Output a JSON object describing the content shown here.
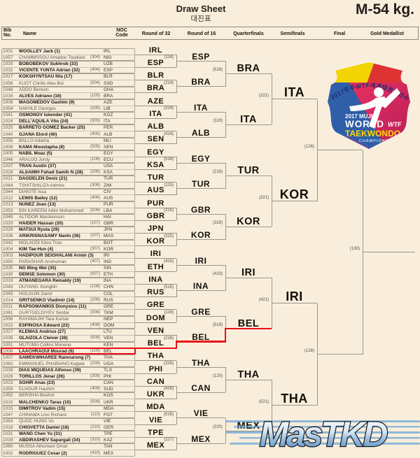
{
  "page": {
    "title": "Draw Sheet",
    "subtitle_korean": "대진표",
    "category": "M-54 kg."
  },
  "table_header": {
    "bib_line1": "Bib",
    "bib_line2": "No.",
    "name": "Name",
    "noc_line1": "NOC",
    "noc_line2": "Code",
    "rounds": [
      "Round of 32",
      "Round of 16",
      "Quarterfinals",
      "Semifinals",
      "Final",
      "Gold Medallist"
    ]
  },
  "athletes": [
    {
      "bib": "1001",
      "name": "WOOLLEY Jack (1)",
      "noc": "IRL",
      "match": "",
      "seeded": true
    },
    {
      "bib": "1057",
      "name": "CHAMMSSOU Amadou Toudiani",
      "noc": "NIG",
      "match": "(304)",
      "seeded": false
    },
    {
      "bib": "1033",
      "name": "BOBOBEKOV Sukhrob (33)",
      "noc": "UZB",
      "match": "",
      "seeded": true
    },
    {
      "bib": "1032",
      "name": "VICENTE YUNTA Adrian (32)",
      "noc": "ESP",
      "match": "(404)",
      "seeded": true
    },
    {
      "bib": "1017",
      "name": "KOKSHYNTSAU Illia (17)",
      "noc": "BLR",
      "match": "",
      "seeded": true
    },
    {
      "bib": "1058",
      "name": "KUOT Chirilo Aleu Bol",
      "noc": "SSD",
      "match": "(504)",
      "seeded": false
    },
    {
      "bib": "1048",
      "name": "ADDO Benson",
      "noc": "GHA",
      "match": "",
      "seeded": false
    },
    {
      "bib": "1016",
      "name": "ALVES Adriano (16)",
      "noc": "BRA",
      "match": "(105)",
      "seeded": true
    },
    {
      "bib": "1009",
      "name": "MAGOMEDOV Gashim (9)",
      "noc": "AZE",
      "match": "",
      "seeded": true
    },
    {
      "bib": "1054",
      "name": "NAKHLE Georges",
      "noc": "LIB",
      "match": "(205)",
      "seeded": false
    },
    {
      "bib": "1041",
      "name": "OSMONOV Iskender (41)",
      "noc": "KGZ",
      "match": "",
      "seeded": true
    },
    {
      "bib": "1024",
      "name": "DELL'AQUILA Vito (24)",
      "noc": "ITA",
      "match": "(305)",
      "seeded": true
    },
    {
      "bib": "1025",
      "name": "BARRETO GOMEZ Backer (25)",
      "noc": "PER",
      "match": "",
      "seeded": true
    },
    {
      "bib": "1040",
      "name": "GJANA Elord (40)",
      "noc": "ALB",
      "match": "(405)",
      "seeded": true
    },
    {
      "bib": "1055",
      "name": "BALLO Adama",
      "noc": "MLI",
      "match": "",
      "seeded": false
    },
    {
      "bib": "1008",
      "name": "KAMA Moustapha (8)",
      "noc": "SEN",
      "match": "(505)",
      "seeded": true
    },
    {
      "bib": "1005",
      "name": "NABIL Moaz (5)",
      "noc": "EGY",
      "match": "",
      "seeded": true
    },
    {
      "bib": "1046",
      "name": "ARAUJO Jordy",
      "noc": "ECU",
      "match": "(106)",
      "seeded": false
    },
    {
      "bib": "1037",
      "name": "TRAN Austin (37)",
      "noc": "USA",
      "match": "",
      "seeded": true
    },
    {
      "bib": "1028",
      "name": "ALSAMIH Fahad Samih N (28)",
      "noc": "KSA",
      "match": "(206)",
      "seeded": true
    },
    {
      "bib": "1021",
      "name": "DAGDELEN Deniz (21)",
      "noc": "TUR",
      "match": "",
      "seeded": true
    },
    {
      "bib": "1064",
      "name": "TSHITSHILIZA Admire",
      "noc": "ZIM",
      "match": "(306)",
      "seeded": false
    },
    {
      "bib": "1044",
      "name": "DIAKITE Issa",
      "noc": "CIV",
      "match": "",
      "seeded": false
    },
    {
      "bib": "1012",
      "name": "LEWIS Bailey (12)",
      "noc": "AUS",
      "match": "(406)",
      "seeded": true
    },
    {
      "bib": "1013",
      "name": "NUNEZ Joan (13)",
      "noc": "PUR",
      "match": "",
      "seeded": true
    },
    {
      "bib": "1053",
      "name": "BIN KAREEM Adim Mohammed",
      "noc": "LBA",
      "match": "(506)",
      "seeded": false
    },
    {
      "bib": "1049",
      "name": "ALTIDOR Marckenson",
      "noc": "HAI",
      "match": "",
      "seeded": false
    },
    {
      "bib": "1020",
      "name": "HAIDER Hassan (20)",
      "noc": "GBR",
      "match": "(107)",
      "seeded": true
    },
    {
      "bib": "1029",
      "name": "MATSUI Ryuta (29)",
      "noc": "JPN",
      "match": "",
      "seeded": true
    },
    {
      "bib": "1036",
      "name": "ARIKRISNASAMY Navin (36)",
      "noc": "MAS",
      "match": "(207)",
      "seeded": true
    },
    {
      "bib": "1042",
      "name": "MOLAODI Kitso True",
      "noc": "BOT",
      "match": "",
      "seeded": false
    },
    {
      "bib": "1004",
      "name": "KIM Tae-Hun (4)",
      "noc": "KOR",
      "match": "(307)",
      "seeded": true
    },
    {
      "bib": "1003",
      "name": "HADIPOUR SEIGHALANI Armin (3)",
      "noc": "IRI",
      "match": "",
      "seeded": true
    },
    {
      "bib": "1050",
      "name": "PARASHAR Anshuman",
      "noc": "IND",
      "match": "(407)",
      "seeded": false
    },
    {
      "bib": "1035",
      "name": "NG Ming Wei (35)",
      "noc": "SIN",
      "match": "",
      "seeded": true
    },
    {
      "bib": "1030",
      "name": "DEMSE Solomon (30)",
      "noc": "ETH",
      "match": "(507)",
      "seeded": true
    },
    {
      "bib": "1019",
      "name": "ATMANEGARA Reinaldy (19)",
      "noc": "INA",
      "match": "",
      "seeded": true
    },
    {
      "bib": "1043",
      "name": "OUYANG Xiongbin",
      "noc": "CHN",
      "match": "(108)",
      "seeded": false
    },
    {
      "bib": "1045",
      "name": "HOLGUIN Zamir",
      "noc": "COL",
      "match": "",
      "seeded": false
    },
    {
      "bib": "1014",
      "name": "GRITSENKO Vladimir (14)",
      "noc": "RUS",
      "match": "(208)",
      "seeded": true
    },
    {
      "bib": "1011",
      "name": "RAPSOMANIKIS Dionysios (11)",
      "noc": "GRE",
      "match": "",
      "seeded": true
    },
    {
      "bib": "1061",
      "name": "GURTGELDIYEV Serdar",
      "noc": "TKM",
      "match": "(308)",
      "seeded": false
    },
    {
      "bib": "1056",
      "name": "RAYAMAJHI Tara Kumar",
      "noc": "NEP",
      "match": "",
      "seeded": false
    },
    {
      "bib": "1022",
      "name": "ESPINOSA Edward (22)",
      "noc": "DOM",
      "match": "(408)",
      "seeded": true
    },
    {
      "bib": "1027",
      "name": "KLEMAS Andrius (27)",
      "noc": "LTU",
      "match": "",
      "seeded": true
    },
    {
      "bib": "1038",
      "name": "OLAIZOLA Cleiver (38)",
      "noc": "VEN",
      "match": "(508)",
      "seeded": true
    },
    {
      "bib": "1051",
      "name": "MUTUMA Collins Munene",
      "noc": "KEN",
      "match": "",
      "seeded": false
    },
    {
      "bib": "1006",
      "name": "LAACHRAOUI Mourad (6)",
      "noc": "BEL",
      "match": "(109)",
      "seeded": true,
      "highlighted": true
    },
    {
      "bib": "1007",
      "name": "SAWEKWIHAREE Ramnarong (7)",
      "noc": "THA",
      "match": "",
      "seeded": true
    },
    {
      "bib": "1062",
      "name": "EMMANUEL PHABIANO Kagwa",
      "noc": "UGA",
      "match": "(209)",
      "seeded": false
    },
    {
      "bib": "1039",
      "name": "DIAS MIQUEIAS Alfonso (39)",
      "noc": "TLS",
      "match": "",
      "seeded": true
    },
    {
      "bib": "1026",
      "name": "TORILLOS Jenar (26)",
      "noc": "PHI",
      "match": "(309)",
      "seeded": true
    },
    {
      "bib": "1023",
      "name": "SGHIR Anas (23)",
      "noc": "CAN",
      "match": "",
      "seeded": true
    },
    {
      "bib": "1059",
      "name": "ELNOUR Hashim",
      "noc": "SUD",
      "match": "(409)",
      "seeded": false
    },
    {
      "bib": "1052",
      "name": "BERISHA Besfort",
      "noc": "KOS",
      "match": "",
      "seeded": false
    },
    {
      "bib": "1010",
      "name": "MALCHENKO Taras (10)",
      "noc": "UKR",
      "match": "(509)",
      "seeded": true
    },
    {
      "bib": "1015",
      "name": "DIMITROV Vadim (15)",
      "noc": "MDA",
      "match": "",
      "seeded": true
    },
    {
      "bib": "1047",
      "name": "CHINAMA Lino Richard",
      "noc": "FGT",
      "match": "(110)",
      "seeded": false
    },
    {
      "bib": "1063",
      "name": "QUOC HUNG Vo",
      "noc": "VIE",
      "match": "",
      "seeded": false
    },
    {
      "bib": "1018",
      "name": "CHIOVETTA Daniel (18)",
      "noc": "GER",
      "match": "(210)",
      "seeded": true
    },
    {
      "bib": "1031",
      "name": "WANG Chen Yu (31)",
      "noc": "TPE",
      "match": "",
      "seeded": true
    },
    {
      "bib": "1034",
      "name": "ABDIRASHEV Sapargali (34)",
      "noc": "KAZ",
      "match": "(310)",
      "seeded": true
    },
    {
      "bib": "1060",
      "name": "MUSSA Athumani Omar",
      "noc": "TAN",
      "match": "",
      "seeded": false
    },
    {
      "bib": "1002",
      "name": "RODRIGUEZ Cesar (2)",
      "noc": "MEX",
      "match": "(410)",
      "seeded": true
    }
  ],
  "bracket": {
    "round_of_32_winners": [
      "IRL",
      "ESP",
      "BLR",
      "BRA",
      "AZE",
      "ITA",
      "ALB",
      "SEN",
      "EGY",
      "KSA",
      "TUR",
      "AUS",
      "PUR",
      "GBR",
      "JPN",
      "KOR",
      "IRI",
      "ETH",
      "INA",
      "RUS",
      "GRE",
      "DOM",
      "VEN",
      "BEL",
      "THA",
      "PHI",
      "CAN",
      "UKR",
      "MDA",
      "VIE",
      "TPE",
      "MEX"
    ],
    "round_of_16": [
      {
        "noc": "ESP",
        "match": "(114)"
      },
      {
        "noc": "BRA",
        "match": "(214)"
      },
      {
        "noc": "ITA",
        "match": "(314)"
      },
      {
        "noc": "ALB",
        "match": "(414)"
      },
      {
        "noc": "EGY",
        "match": "(514)"
      },
      {
        "noc": "TUR",
        "match": "(115)"
      },
      {
        "noc": "GBR",
        "match": "(215)"
      },
      {
        "noc": "KOR",
        "match": "(315)"
      },
      {
        "noc": "IRI",
        "match": "(415)"
      },
      {
        "noc": "INA",
        "match": "(515)"
      },
      {
        "noc": "GRE",
        "match": "(116)"
      },
      {
        "noc": "BEL",
        "match": "(216)"
      },
      {
        "noc": "THA",
        "match": "(316)"
      },
      {
        "noc": "CAN",
        "match": "(416)"
      },
      {
        "noc": "VIE",
        "match": "(516)"
      },
      {
        "noc": "MEX",
        "match": "(117)"
      }
    ],
    "quarterfinals": [
      {
        "noc": "BRA",
        "match": "(518)"
      },
      {
        "noc": "ITA",
        "match": "(119)"
      },
      {
        "noc": "TUR",
        "match": "(219)"
      },
      {
        "noc": "KOR",
        "match": "(319)"
      },
      {
        "noc": "IRI",
        "match": "(419)"
      },
      {
        "noc": "BEL",
        "match": "(519)"
      },
      {
        "noc": "THA",
        "match": "(120)"
      },
      {
        "noc": "MEX",
        "match": "(220)"
      }
    ],
    "semifinals": [
      {
        "noc": "ITA",
        "match": "(221)"
      },
      {
        "noc": "KOR",
        "match": "(321)"
      },
      {
        "noc": "IRI",
        "match": "(421)"
      },
      {
        "noc": "THA",
        "match": "(521)"
      }
    ],
    "semifinal_match_numbers": [
      "(126)",
      "(128)"
    ],
    "final_match_number": "(130)",
    "highlighted_path": {
      "athlete": "LAACHRAOUI Mourad (6)",
      "noc": "BEL",
      "color": "#e81118"
    }
  },
  "logo": {
    "korean_arc": "2017무주WTF세계태권도선수권대회",
    "year_city": "2017 MUJU",
    "line1": "WORLD",
    "line2": "TAEKWONDO",
    "line3": "CHAMPIONSHIPS",
    "federation": "WTF"
  },
  "watermark": "MasTKD",
  "colors": {
    "background": "#f9eedc",
    "bracket_line": "#9b968c",
    "highlight_red": "#e81118",
    "logo_blue": "#2f5fa8",
    "logo_red": "#d62e5e",
    "logo_yellow": "#f3d403"
  }
}
